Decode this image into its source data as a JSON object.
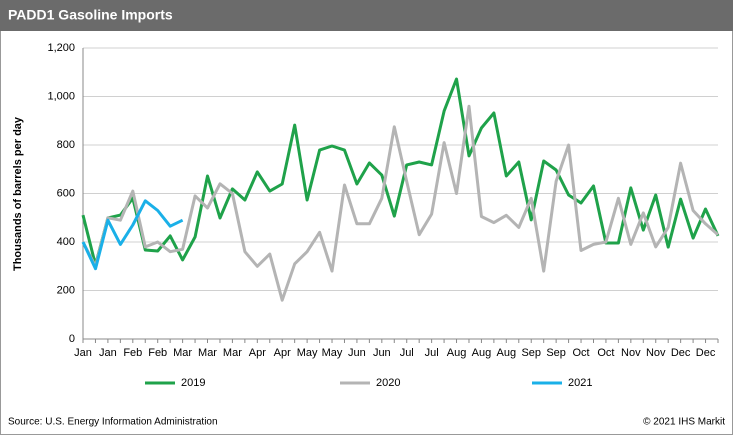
{
  "chart_data": {
    "type": "line",
    "title": "PADD1  Gasoline Imports",
    "y_label": "Thousands of barrels per day",
    "source": "Source:  U.S. Energy Information Administration",
    "copyright": "© 2021  IHS Markit",
    "categories": [
      "Jan",
      null,
      "Jan",
      null,
      "Feb",
      null,
      "Feb",
      null,
      "Mar",
      null,
      "Mar",
      null,
      "Mar",
      null,
      "Apr",
      null,
      "Apr",
      null,
      "May",
      null,
      "May",
      null,
      "Jun",
      null,
      "Jun",
      null,
      "Jul",
      null,
      "Jul",
      null,
      "Aug",
      null,
      "Aug",
      null,
      "Aug",
      null,
      "Sep",
      null,
      "Sep",
      null,
      "Oct",
      null,
      "Oct",
      null,
      "Nov",
      null,
      "Nov",
      null,
      "Dec",
      null,
      "Dec",
      null
    ],
    "series": [
      {
        "name": "2019",
        "color": "#1fa24a",
        "values": [
          511,
          305,
          499,
          511,
          581,
          367,
          363,
          425,
          326,
          421,
          672,
          499,
          619,
          573,
          689,
          610,
          639,
          882,
          573,
          779,
          796,
          779,
          639,
          726,
          676,
          507,
          718,
          730,
          718,
          940,
          1072,
          755,
          870,
          932,
          672,
          730,
          491,
          734,
          697,
          594,
          561,
          631,
          396,
          396,
          623,
          449,
          594,
          379,
          577,
          416,
          536,
          425
        ]
      },
      {
        "name": "2020",
        "color": "#b4b4b4",
        "values": [
          400,
          300,
          500,
          490,
          610,
          380,
          400,
          360,
          370,
          590,
          540,
          640,
          600,
          360,
          300,
          350,
          160,
          310,
          360,
          440,
          280,
          635,
          475,
          475,
          580,
          875,
          650,
          430,
          515,
          810,
          600,
          960,
          505,
          480,
          510,
          460,
          580,
          280,
          650,
          800,
          365,
          390,
          400,
          580,
          390,
          520,
          380,
          460,
          725,
          530,
          475,
          430
        ]
      },
      {
        "name": "2021",
        "color": "#1ab0e8",
        "values": [
          400,
          290,
          490,
          390,
          470,
          570,
          530,
          465,
          490,
          null,
          null,
          null,
          null,
          null,
          null,
          null,
          null,
          null,
          null,
          null,
          null,
          null,
          null,
          null,
          null,
          null,
          null,
          null,
          null,
          null,
          null,
          null,
          null,
          null,
          null,
          null,
          null,
          null,
          null,
          null,
          null,
          null,
          null,
          null,
          null,
          null,
          null,
          null,
          null,
          null,
          null,
          null
        ]
      }
    ],
    "ylim": [
      0,
      1200
    ],
    "yticks": [
      0,
      200,
      400,
      600,
      800,
      {
        "value": 1000,
        "label": "1,000"
      },
      {
        "value": 1200,
        "label": "1,200"
      }
    ],
    "grid": true
  }
}
